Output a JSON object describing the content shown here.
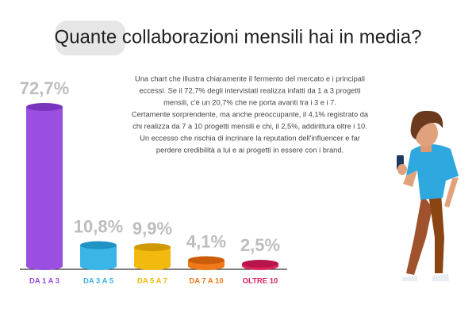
{
  "chart_data": {
    "type": "cylinder-bar",
    "title": "Quante collaborazioni mensili hai in media?",
    "description": [
      "Una chart che illustra chiaramente il fermento del mercato e i principali",
      "eccessi. Se il 72,7% degli intervistati realizza infatti da 1 a 3 progetti",
      "mensili, c'è un 20,7% che ne porta avanti tra i 3 e i 7.",
      "Certamente sorprendente, ma anche preoccupante, il 4,1% registrato da",
      "chi realizza da 7 a 10 progetti mensili e chi, il 2,5%, addirittura oltre i 10.",
      "Un eccesso che rischia di incrinare la reputation dell'influencer e far",
      "perdere credibilità a lui e ai progetti in essere con i brand."
    ],
    "categories": [
      "DA 1 A 3",
      "DA 3 A 5",
      "DA 5 A 7",
      "DA 7 A 10",
      "OLTRE 10"
    ],
    "values": [
      72.7,
      10.8,
      9.9,
      4.1,
      2.5
    ],
    "value_labels": [
      "72,7%",
      "10,8%",
      "9,9%",
      "4,1%",
      "2,5%"
    ],
    "colors": [
      "#9b4fe0",
      "#3bb5e8",
      "#f2b90f",
      "#f07a1a",
      "#e0245e"
    ],
    "cap_colors": [
      "#7a35bf",
      "#1f93c4",
      "#cf9a05",
      "#cc5e0b",
      "#b8154a"
    ]
  }
}
